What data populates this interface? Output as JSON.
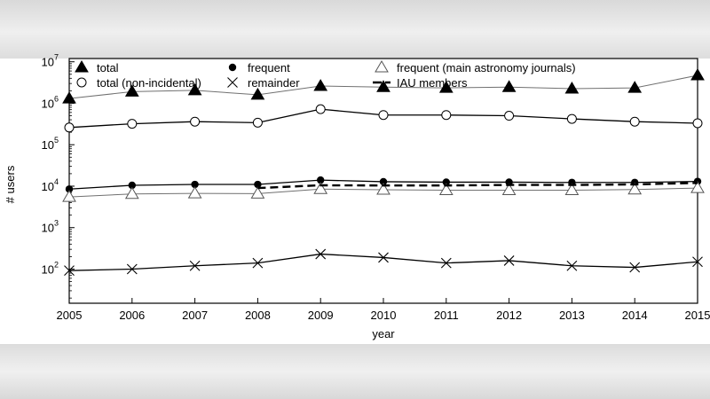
{
  "chart_data": {
    "type": "line",
    "xlabel": "year",
    "ylabel": "# users",
    "x": [
      2005,
      2006,
      2007,
      2008,
      2009,
      2010,
      2011,
      2012,
      2013,
      2014,
      2015
    ],
    "xlim": [
      2005,
      2015
    ],
    "ylim": [
      15,
      12000000
    ],
    "yscale": "log",
    "yticks": [
      {
        "base": "10",
        "exp": "2",
        "value": 100
      },
      {
        "base": "10",
        "exp": "3",
        "value": 1000
      },
      {
        "base": "10",
        "exp": "4",
        "value": 10000
      },
      {
        "base": "10",
        "exp": "5",
        "value": 100000
      },
      {
        "base": "10",
        "exp": "6",
        "value": 1000000
      },
      {
        "base": "10",
        "exp": "7",
        "value": 10000000
      }
    ],
    "grid": false,
    "legend_position": "top",
    "series": [
      {
        "name": "total",
        "marker": "filled-triangle",
        "line": "solid-thin",
        "color": "#707070",
        "values": [
          1300000,
          1900000,
          2050000,
          1600000,
          2600000,
          2450000,
          2350000,
          2450000,
          2250000,
          2350000,
          4700000
        ]
      },
      {
        "name": "total (non-incidental)",
        "marker": "open-circle",
        "line": "solid",
        "color": "#000000",
        "values": [
          260000,
          320000,
          360000,
          340000,
          720000,
          520000,
          520000,
          500000,
          420000,
          360000,
          330000
        ]
      },
      {
        "name": "frequent",
        "marker": "filled-circle",
        "line": "solid",
        "color": "#000000",
        "values": [
          8500,
          10500,
          11000,
          11000,
          14000,
          12800,
          12500,
          12500,
          12300,
          12300,
          13000
        ]
      },
      {
        "name": "remainder",
        "marker": "x",
        "line": "solid",
        "color": "#000000",
        "values": [
          92,
          100,
          120,
          140,
          230,
          190,
          140,
          160,
          120,
          110,
          150
        ]
      },
      {
        "name": "frequent (main astronomy journals)",
        "marker": "open-triangle",
        "line": "solid-thin",
        "color": "#707070",
        "values": [
          5500,
          6500,
          6700,
          6600,
          8500,
          8200,
          8000,
          8000,
          8000,
          8300,
          9000
        ]
      },
      {
        "name": "IAU members",
        "marker": "none",
        "line": "dashed-thick",
        "color": "#000000",
        "values": [
          null,
          null,
          null,
          9000,
          10500,
          10400,
          10400,
          10700,
          10700,
          11000,
          12000
        ]
      }
    ]
  }
}
